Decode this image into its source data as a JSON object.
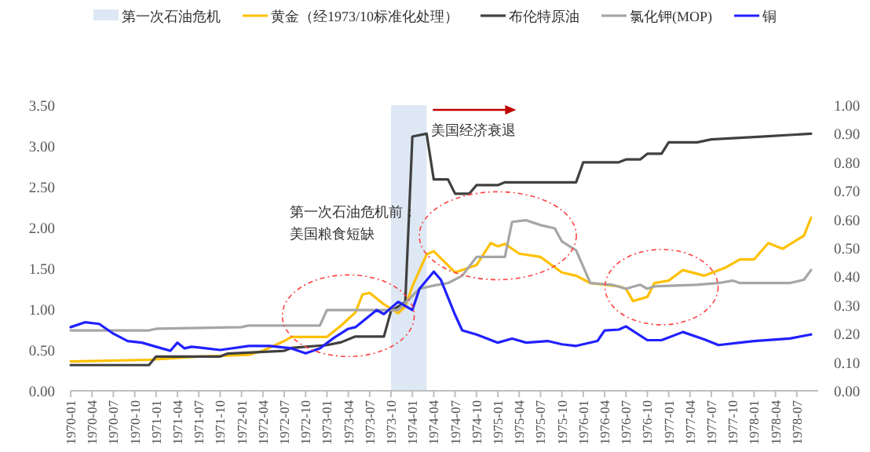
{
  "chart_data": {
    "type": "line",
    "xlim": [
      "1970-01",
      "1978-10"
    ],
    "xticks": [
      "1970-01",
      "1970-04",
      "1970-07",
      "1970-10",
      "1971-01",
      "1971-04",
      "1971-07",
      "1971-10",
      "1972-01",
      "1972-04",
      "1972-07",
      "1972-10",
      "1973-01",
      "1973-04",
      "1973-07",
      "1973-10",
      "1974-01",
      "1974-04",
      "1974-07",
      "1974-10",
      "1975-01",
      "1975-04",
      "1975-07",
      "1975-10",
      "1976-01",
      "1976-04",
      "1976-07",
      "1976-10",
      "1977-01",
      "1977-04",
      "1977-07",
      "1977-10",
      "1978-01",
      "1978-04",
      "1978-07"
    ],
    "ylim": [
      0,
      3.5
    ],
    "yticks": [
      {
        "value": 0,
        "label": "0.00"
      },
      {
        "value": 0.5,
        "label": "0.50"
      },
      {
        "value": 1,
        "label": "1.00"
      },
      {
        "value": 1.5,
        "label": "1.50"
      },
      {
        "value": 2,
        "label": "2.00"
      },
      {
        "value": 2.5,
        "label": "2.50"
      },
      {
        "value": 3,
        "label": "3.00"
      },
      {
        "value": 3.5,
        "label": "3.50"
      }
    ],
    "y2lim": [
      0,
      1
    ],
    "y2ticks": [
      {
        "value": 0,
        "label": "0.00"
      },
      {
        "value": 0.1,
        "label": "0.10"
      },
      {
        "value": 0.2,
        "label": "0.20"
      },
      {
        "value": 0.3,
        "label": "0.30"
      },
      {
        "value": 0.4,
        "label": "0.40"
      },
      {
        "value": 0.5,
        "label": "0.50"
      },
      {
        "value": 0.6,
        "label": "0.60"
      },
      {
        "value": 0.7,
        "label": "0.70"
      },
      {
        "value": 0.8,
        "label": "0.80"
      },
      {
        "value": 0.9,
        "label": "0.90"
      },
      {
        "value": 1,
        "label": "1.00"
      }
    ],
    "bands": [
      {
        "axis": "x",
        "from": "1973-10",
        "to": "1974-03",
        "label": "第一次石油危机",
        "color": "#dde8f4"
      }
    ],
    "legend": "top",
    "grid": false,
    "marker": "none",
    "series": [
      {
        "name": "黄金（经1973/10标准化处理）",
        "color": "#ffc000",
        "x": [
          "1970-01",
          "1970-12",
          "1971-07",
          "1972-02",
          "1972-04",
          "1972-07",
          "1972-08",
          "1973-01",
          "1973-03",
          "1973-05",
          "1973-06",
          "1973-07",
          "1973-09",
          "1973-11",
          "1973-12",
          "1974-01",
          "1974-03",
          "1974-04",
          "1974-07",
          "1974-10",
          "1974-12",
          "1975-01",
          "1975-02",
          "1975-04",
          "1975-07",
          "1975-10",
          "1975-12",
          "1976-02",
          "1976-06",
          "1976-07",
          "1976-08",
          "1976-10",
          "1976-11",
          "1977-01",
          "1977-03",
          "1977-06",
          "1977-09",
          "1977-11",
          "1978-01",
          "1978-03",
          "1978-05",
          "1978-08",
          "1978-09"
        ],
        "values": [
          0.36,
          0.38,
          0.42,
          0.44,
          0.49,
          0.61,
          0.66,
          0.66,
          0.8,
          0.96,
          1.18,
          1.2,
          1.06,
          0.95,
          1.03,
          1.28,
          1.67,
          1.71,
          1.45,
          1.54,
          1.81,
          1.77,
          1.8,
          1.68,
          1.64,
          1.45,
          1.41,
          1.32,
          1.28,
          1.25,
          1.1,
          1.15,
          1.32,
          1.35,
          1.48,
          1.41,
          1.51,
          1.61,
          1.61,
          1.81,
          1.74,
          1.9,
          2.12
        ]
      },
      {
        "name": "布伦特原油",
        "color": "#404040",
        "axis": "y2",
        "x": [
          "1970-01",
          "1970-12",
          "1971-01",
          "1971-10",
          "1971-11",
          "1972-07",
          "1972-08",
          "1973-01",
          "1973-03",
          "1973-05",
          "1973-09",
          "1973-10",
          "1973-12",
          "1974-01",
          "1974-03",
          "1974-04",
          "1974-06",
          "1974-07",
          "1974-09",
          "1974-10",
          "1975-01",
          "1975-02",
          "1975-12",
          "1976-01",
          "1976-06",
          "1976-07",
          "1976-09",
          "1976-10",
          "1976-12",
          "1977-01",
          "1977-05",
          "1977-07",
          "1978-02",
          "1978-09"
        ],
        "values": [
          0.09,
          0.09,
          0.12,
          0.12,
          0.13,
          0.14,
          0.15,
          0.16,
          0.17,
          0.19,
          0.19,
          0.28,
          0.31,
          0.89,
          0.9,
          0.74,
          0.74,
          0.69,
          0.69,
          0.72,
          0.72,
          0.73,
          0.73,
          0.8,
          0.8,
          0.81,
          0.81,
          0.83,
          0.83,
          0.87,
          0.87,
          0.88,
          0.89,
          0.9
        ]
      },
      {
        "name": "氯化钾(MOP)",
        "color": "#a6a6a6",
        "x": [
          "1970-01",
          "1970-12",
          "1971-01",
          "1972-01",
          "1972-02",
          "1972-12",
          "1973-01",
          "1973-11",
          "1974-02",
          "1974-04",
          "1974-06",
          "1974-08",
          "1974-10",
          "1975-02",
          "1975-03",
          "1975-05",
          "1975-07",
          "1975-09",
          "1975-10",
          "1975-12",
          "1976-02",
          "1976-05",
          "1976-07",
          "1976-09",
          "1976-10",
          "1976-11",
          "1977-05",
          "1977-08",
          "1977-10",
          "1977-11",
          "1978-06",
          "1978-08",
          "1978-09"
        ],
        "values": [
          0.74,
          0.74,
          0.76,
          0.78,
          0.8,
          0.8,
          0.99,
          0.99,
          1.25,
          1.29,
          1.32,
          1.41,
          1.64,
          1.64,
          2.07,
          2.09,
          2.03,
          1.99,
          1.83,
          1.72,
          1.32,
          1.3,
          1.25,
          1.3,
          1.25,
          1.28,
          1.3,
          1.32,
          1.35,
          1.32,
          1.32,
          1.36,
          1.48
        ]
      },
      {
        "name": "铜",
        "color": "#2020ff",
        "x": [
          "1970-01",
          "1970-03",
          "1970-05",
          "1970-07",
          "1970-09",
          "1970-11",
          "1971-01",
          "1971-03",
          "1971-04",
          "1971-05",
          "1971-06",
          "1971-08",
          "1971-10",
          "1972-02",
          "1972-05",
          "1972-08",
          "1972-10",
          "1972-12",
          "1973-02",
          "1973-04",
          "1973-05",
          "1973-08",
          "1973-09",
          "1973-11",
          "1974-01",
          "1974-02",
          "1974-04",
          "1974-05",
          "1974-07",
          "1974-08",
          "1974-10",
          "1975-01",
          "1975-03",
          "1975-05",
          "1975-08",
          "1975-10",
          "1975-12",
          "1976-03",
          "1976-04",
          "1976-06",
          "1976-07",
          "1976-10",
          "1976-12",
          "1977-03",
          "1977-06",
          "1977-08",
          "1977-11",
          "1978-01",
          "1978-06",
          "1978-09"
        ],
        "values": [
          0.78,
          0.84,
          0.82,
          0.7,
          0.61,
          0.59,
          0.54,
          0.49,
          0.59,
          0.52,
          0.54,
          0.52,
          0.5,
          0.55,
          0.55,
          0.52,
          0.46,
          0.52,
          0.65,
          0.76,
          0.78,
          0.99,
          0.94,
          1.09,
          0.99,
          1.25,
          1.46,
          1.36,
          0.93,
          0.74,
          0.69,
          0.59,
          0.64,
          0.59,
          0.61,
          0.57,
          0.55,
          0.61,
          0.74,
          0.75,
          0.79,
          0.62,
          0.62,
          0.72,
          0.63,
          0.56,
          0.59,
          0.61,
          0.64,
          0.69
        ]
      }
    ],
    "annotations": [
      "第一次石油危机前：",
      "美国粮食短缺",
      "美国经济衰退"
    ]
  }
}
